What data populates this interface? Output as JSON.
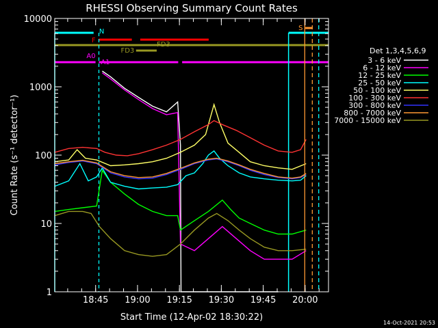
{
  "chart_data": {
    "type": "line",
    "title": "RHESSI Observing Summary Count Rates",
    "xlabel": "Start Time (12-Apr-02 18:30:22)",
    "ylabel": "Count Rate (s⁻¹ detector⁻¹)",
    "ylim": [
      1,
      10000
    ],
    "yscale": "log",
    "xlim_minutes": [
      0,
      98
    ],
    "yticks": [
      "1",
      "10",
      "100",
      "1000",
      "10000"
    ],
    "xticks": [
      {
        "label": "18:45",
        "min": 14.63
      },
      {
        "label": "19:00",
        "min": 29.63
      },
      {
        "label": "19:15",
        "min": 44.63
      },
      {
        "label": "19:30",
        "min": 59.63
      },
      {
        "label": "19:45",
        "min": 74.63
      },
      {
        "label": "20:00",
        "min": 89.63
      }
    ],
    "legend_title": "Det 1,3,4,5,6,9",
    "legend_position": "right",
    "timestamp": "14-Oct-2021 20:53",
    "series": [
      {
        "name": "3 - 6 keV",
        "color": "#ffffff",
        "points": [
          [
            17,
            1700
          ],
          [
            20,
            1400
          ],
          [
            25,
            950
          ],
          [
            30,
            700
          ],
          [
            35,
            520
          ],
          [
            40,
            430
          ],
          [
            44,
            600
          ],
          [
            45,
            140
          ],
          [
            45.2,
            1
          ],
          [
            70,
            1
          ],
          [
            80,
            1
          ]
        ]
      },
      {
        "name": "6 - 12 keV",
        "color": "#ff00ff",
        "points": [
          [
            17,
            1600
          ],
          [
            20,
            1300
          ],
          [
            25,
            900
          ],
          [
            30,
            650
          ],
          [
            35,
            480
          ],
          [
            40,
            390
          ],
          [
            44,
            420
          ],
          [
            45,
            5
          ],
          [
            50,
            4
          ],
          [
            55,
            6
          ],
          [
            60,
            9
          ],
          [
            65,
            6
          ],
          [
            70,
            4
          ],
          [
            75,
            3
          ],
          [
            80,
            3
          ],
          [
            85,
            3
          ],
          [
            90,
            4
          ]
        ]
      },
      {
        "name": "12 - 25 keV",
        "color": "#00ff00",
        "points": [
          [
            0,
            15
          ],
          [
            5,
            16
          ],
          [
            10,
            17
          ],
          [
            15,
            18
          ],
          [
            17,
            60
          ],
          [
            20,
            40
          ],
          [
            25,
            27
          ],
          [
            30,
            19
          ],
          [
            35,
            15
          ],
          [
            40,
            13
          ],
          [
            44,
            13
          ],
          [
            45,
            8
          ],
          [
            50,
            11
          ],
          [
            55,
            15
          ],
          [
            60,
            22
          ],
          [
            63,
            16
          ],
          [
            66,
            12
          ],
          [
            70,
            10
          ],
          [
            75,
            8
          ],
          [
            80,
            7
          ],
          [
            85,
            7
          ],
          [
            90,
            8
          ]
        ]
      },
      {
        "name": "25 - 50 keV",
        "color": "#00ffff",
        "points": [
          [
            0,
            35
          ],
          [
            5,
            42
          ],
          [
            9,
            75
          ],
          [
            12,
            42
          ],
          [
            15,
            48
          ],
          [
            17,
            65
          ],
          [
            20,
            40
          ],
          [
            25,
            35
          ],
          [
            30,
            32
          ],
          [
            35,
            33
          ],
          [
            40,
            34
          ],
          [
            44,
            37
          ],
          [
            47,
            50
          ],
          [
            50,
            55
          ],
          [
            53,
            75
          ],
          [
            55,
            100
          ],
          [
            57,
            115
          ],
          [
            59,
            90
          ],
          [
            62,
            70
          ],
          [
            66,
            55
          ],
          [
            70,
            48
          ],
          [
            75,
            45
          ],
          [
            80,
            43
          ],
          [
            85,
            42
          ],
          [
            88,
            43
          ],
          [
            90,
            50
          ]
        ]
      },
      {
        "name": "50 - 100 keV",
        "color": "#ffff66",
        "points": [
          [
            0,
            80
          ],
          [
            5,
            85
          ],
          [
            8,
            120
          ],
          [
            11,
            90
          ],
          [
            15,
            85
          ],
          [
            20,
            70
          ],
          [
            25,
            72
          ],
          [
            30,
            75
          ],
          [
            35,
            80
          ],
          [
            40,
            90
          ],
          [
            45,
            110
          ],
          [
            50,
            140
          ],
          [
            54,
            200
          ],
          [
            57,
            550
          ],
          [
            59,
            300
          ],
          [
            62,
            150
          ],
          [
            66,
            110
          ],
          [
            70,
            80
          ],
          [
            75,
            70
          ],
          [
            80,
            65
          ],
          [
            85,
            62
          ],
          [
            90,
            75
          ]
        ]
      },
      {
        "name": "100 - 300 keV",
        "color": "#ff3333",
        "points": [
          [
            0,
            110
          ],
          [
            5,
            125
          ],
          [
            10,
            130
          ],
          [
            15,
            125
          ],
          [
            18,
            110
          ],
          [
            22,
            100
          ],
          [
            26,
            98
          ],
          [
            30,
            105
          ],
          [
            35,
            120
          ],
          [
            40,
            140
          ],
          [
            45,
            170
          ],
          [
            50,
            220
          ],
          [
            55,
            280
          ],
          [
            57,
            320
          ],
          [
            60,
            280
          ],
          [
            65,
            230
          ],
          [
            70,
            180
          ],
          [
            75,
            140
          ],
          [
            80,
            115
          ],
          [
            85,
            110
          ],
          [
            88,
            120
          ],
          [
            90,
            170
          ]
        ]
      },
      {
        "name": "300 - 800 keV",
        "color": "#3333ff",
        "points": [
          [
            0,
            72
          ],
          [
            5,
            78
          ],
          [
            10,
            82
          ],
          [
            15,
            75
          ],
          [
            20,
            55
          ],
          [
            25,
            48
          ],
          [
            30,
            45
          ],
          [
            35,
            46
          ],
          [
            40,
            52
          ],
          [
            45,
            62
          ],
          [
            50,
            75
          ],
          [
            55,
            85
          ],
          [
            58,
            88
          ],
          [
            62,
            80
          ],
          [
            66,
            70
          ],
          [
            70,
            60
          ],
          [
            75,
            52
          ],
          [
            80,
            47
          ],
          [
            85,
            45
          ],
          [
            88,
            47
          ],
          [
            90,
            52
          ]
        ]
      },
      {
        "name": "800 - 7000 keV",
        "color": "#ff9933",
        "points": [
          [
            0,
            75
          ],
          [
            5,
            80
          ],
          [
            10,
            84
          ],
          [
            15,
            77
          ],
          [
            20,
            57
          ],
          [
            25,
            50
          ],
          [
            30,
            47
          ],
          [
            35,
            48
          ],
          [
            40,
            54
          ],
          [
            45,
            64
          ],
          [
            50,
            77
          ],
          [
            55,
            87
          ],
          [
            58,
            90
          ],
          [
            62,
            82
          ],
          [
            66,
            72
          ],
          [
            70,
            62
          ],
          [
            75,
            54
          ],
          [
            80,
            48
          ],
          [
            85,
            46
          ],
          [
            88,
            48
          ],
          [
            90,
            54
          ]
        ]
      },
      {
        "name": "7000 - 15000 keV",
        "color": "#999922",
        "points": [
          [
            0,
            13
          ],
          [
            5,
            15
          ],
          [
            10,
            15
          ],
          [
            13,
            14
          ],
          [
            16,
            9
          ],
          [
            20,
            6
          ],
          [
            25,
            4
          ],
          [
            30,
            3.5
          ],
          [
            35,
            3.3
          ],
          [
            40,
            3.5
          ],
          [
            45,
            5
          ],
          [
            50,
            8
          ],
          [
            55,
            12
          ],
          [
            58,
            14
          ],
          [
            62,
            11
          ],
          [
            66,
            8
          ],
          [
            70,
            6
          ],
          [
            75,
            4.5
          ],
          [
            80,
            4
          ],
          [
            85,
            4
          ],
          [
            90,
            4.2
          ]
        ]
      }
    ],
    "vlines": [
      {
        "min": 89.5,
        "color": "#ff9933",
        "dash": false
      },
      {
        "min": 92.2,
        "color": "#ff9933",
        "dash": true
      },
      {
        "min": 94.5,
        "color": "#00ffff",
        "dash": true
      }
    ],
    "flags": [
      {
        "label": "N",
        "color": "#00ffff"
      },
      {
        "label": "F",
        "color": "#ff0000"
      },
      {
        "label": "FD3",
        "color": "#999922"
      },
      {
        "label": "FD3",
        "color": "#999922"
      },
      {
        "label": "A0",
        "color": "#ff00ff"
      },
      {
        "label": "A1",
        "color": "#ff00ff"
      },
      {
        "label": "S",
        "color": "#ff9933"
      }
    ]
  }
}
